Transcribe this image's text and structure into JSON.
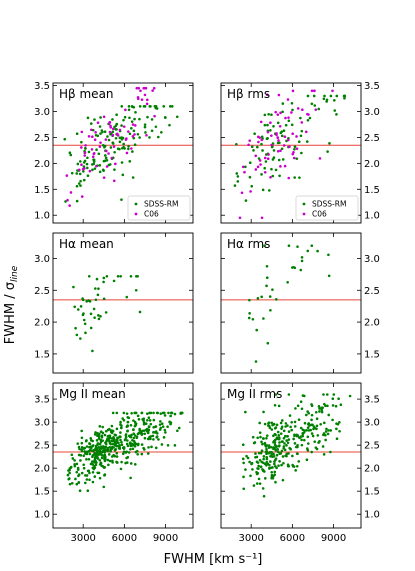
{
  "figure": {
    "xlabel": "FWHM [km s⁻¹]",
    "ylabel": "FWHM / σ",
    "ylabel_sub": "line"
  },
  "chart_data": [
    {
      "type": "scatter",
      "title": "Hβ mean",
      "reference_line": 2.35,
      "xlim": [
        800,
        11000
      ],
      "ylim": [
        0.85,
        3.55
      ],
      "yticks": [
        1.0,
        1.5,
        2.0,
        2.5,
        3.0,
        3.5
      ],
      "ytick_side": "left",
      "xticks": [],
      "series": [
        {
          "name": "SDSS-RM",
          "color": "#008000",
          "n": 160,
          "seed": 11,
          "xmin": 1300,
          "xmax": 10500,
          "xmode": 4000,
          "ymin": 1.05,
          "ymax": 3.1,
          "slope": 0.0002,
          "intercept": 1.35,
          "spread": 0.32
        },
        {
          "name": "C06",
          "color": "#cc00cc",
          "n": 75,
          "seed": 23,
          "xmin": 1300,
          "xmax": 9500,
          "xmode": 4800,
          "ymin": 0.95,
          "ymax": 3.45,
          "slope": 0.00024,
          "intercept": 1.25,
          "spread": 0.38
        }
      ],
      "legend": [
        {
          "name": "SDSS-RM",
          "color": "#008000"
        },
        {
          "name": "C06",
          "color": "#cc00cc"
        }
      ],
      "legend_position": "lower right"
    },
    {
      "type": "scatter",
      "title": "Hβ rms",
      "reference_line": 2.35,
      "xlim": [
        800,
        11000
      ],
      "ylim": [
        0.85,
        3.55
      ],
      "yticks": [
        1.0,
        1.5,
        2.0,
        2.5,
        3.0,
        3.5
      ],
      "ytick_side": "right",
      "xticks": [],
      "series": [
        {
          "name": "SDSS-RM",
          "color": "#008000",
          "n": 100,
          "seed": 37,
          "xmin": 1500,
          "xmax": 10500,
          "xmode": 4200,
          "ymin": 1.05,
          "ymax": 3.3,
          "slope": 0.0002,
          "intercept": 1.45,
          "spread": 0.38
        },
        {
          "name": "C06",
          "color": "#cc00cc",
          "n": 70,
          "seed": 41,
          "xmin": 1500,
          "xmax": 9500,
          "xmode": 4300,
          "ymin": 0.95,
          "ymax": 3.4,
          "slope": 0.00024,
          "intercept": 1.25,
          "spread": 0.42
        }
      ],
      "legend": [
        {
          "name": "SDSS-RM",
          "color": "#008000"
        },
        {
          "name": "C06",
          "color": "#cc00cc"
        }
      ],
      "legend_position": "lower right"
    },
    {
      "type": "scatter",
      "title": "Hα mean",
      "reference_line": 2.35,
      "xlim": [
        800,
        11000
      ],
      "ylim": [
        1.2,
        3.4
      ],
      "yticks": [
        1.5,
        2.0,
        2.5,
        3.0
      ],
      "ytick_side": "left",
      "xticks": [],
      "series": [
        {
          "name": "SDSS-RM",
          "color": "#008000",
          "n": 45,
          "seed": 53,
          "xmin": 1500,
          "xmax": 8200,
          "xmode": 3300,
          "ymin": 1.38,
          "ymax": 2.72,
          "slope": 0.00014,
          "intercept": 1.75,
          "spread": 0.27
        }
      ],
      "legend": [],
      "legend_position": "none"
    },
    {
      "type": "scatter",
      "title": "Hα rms",
      "reference_line": 2.35,
      "xlim": [
        800,
        11000
      ],
      "ylim": [
        1.2,
        3.4
      ],
      "yticks": [
        1.5,
        2.0,
        2.5,
        3.0
      ],
      "ytick_side": "right",
      "xticks": [],
      "series": [
        {
          "name": "SDSS-RM",
          "color": "#008000",
          "n": 32,
          "seed": 67,
          "xmin": 1500,
          "xmax": 9600,
          "xmode": 3800,
          "ymin": 1.38,
          "ymax": 3.2,
          "slope": 0.00016,
          "intercept": 1.75,
          "spread": 0.35
        }
      ],
      "legend": [],
      "legend_position": "none"
    },
    {
      "type": "scatter",
      "title": "Mg II mean",
      "reference_line": 2.35,
      "xlim": [
        800,
        11000
      ],
      "ylim": [
        0.7,
        3.85
      ],
      "yticks": [
        1.0,
        1.5,
        2.0,
        2.5,
        3.0,
        3.5
      ],
      "ytick_side": "left",
      "xticks": [
        3000,
        6000,
        9000
      ],
      "series": [
        {
          "name": "SDSS-RM",
          "color": "#008000",
          "n": 470,
          "seed": 79,
          "xmin": 1500,
          "xmax": 10500,
          "xmode": 4200,
          "ymin": 0.8,
          "ymax": 3.2,
          "slope": 0.00014,
          "intercept": 1.75,
          "spread": 0.28
        }
      ],
      "legend": [],
      "legend_position": "none"
    },
    {
      "type": "scatter",
      "title": "Mg II rms",
      "reference_line": 2.35,
      "xlim": [
        800,
        11000
      ],
      "ylim": [
        0.7,
        3.85
      ],
      "yticks": [
        1.0,
        1.5,
        2.0,
        2.5,
        3.0,
        3.5
      ],
      "ytick_side": "right",
      "xticks": [
        3000,
        6000,
        9000
      ],
      "series": [
        {
          "name": "SDSS-RM",
          "color": "#008000",
          "n": 320,
          "seed": 97,
          "xmin": 2000,
          "xmax": 10500,
          "xmode": 4700,
          "ymin": 0.9,
          "ymax": 3.6,
          "slope": 0.00016,
          "intercept": 1.65,
          "spread": 0.35
        }
      ],
      "legend": [],
      "legend_position": "none"
    }
  ]
}
